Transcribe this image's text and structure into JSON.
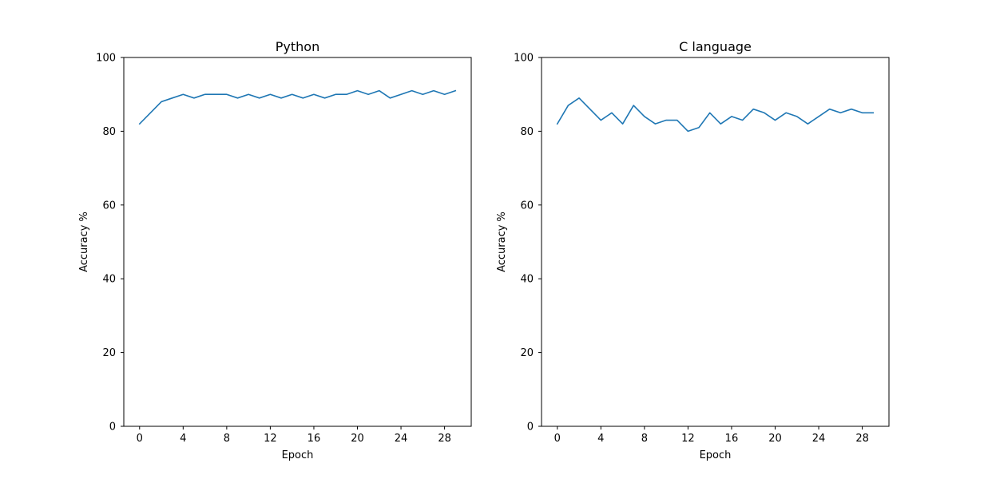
{
  "chart_data": [
    {
      "type": "line",
      "title": "Python",
      "xlabel": "Epoch",
      "ylabel": "Accuracy %",
      "xlim": [
        -1.45,
        30.45
      ],
      "ylim": [
        0,
        100
      ],
      "xticks": [
        0,
        4,
        8,
        12,
        16,
        20,
        24,
        28
      ],
      "yticks": [
        0,
        20,
        40,
        60,
        80,
        100
      ],
      "grid": false,
      "color": "#1f77b4",
      "series": [
        {
          "x": [
            0,
            1,
            2,
            3,
            4,
            5,
            6,
            7,
            8,
            9,
            10,
            11,
            12,
            13,
            14,
            15,
            16,
            17,
            18,
            19,
            20,
            21,
            22,
            23,
            24,
            25,
            26,
            27,
            28,
            29
          ],
          "values": [
            82,
            85,
            88,
            89,
            90,
            89,
            90,
            90,
            90,
            89,
            90,
            89,
            90,
            89,
            90,
            89,
            90,
            89,
            90,
            90,
            91,
            90,
            91,
            89,
            90,
            91,
            90,
            91,
            90,
            91
          ]
        }
      ]
    },
    {
      "type": "line",
      "title": "C language",
      "xlabel": "Epoch",
      "ylabel": "Accuracy %",
      "xlim": [
        -1.45,
        30.45
      ],
      "ylim": [
        0,
        100
      ],
      "xticks": [
        0,
        4,
        8,
        12,
        16,
        20,
        24,
        28
      ],
      "yticks": [
        0,
        20,
        40,
        60,
        80,
        100
      ],
      "grid": false,
      "color": "#1f77b4",
      "series": [
        {
          "x": [
            0,
            1,
            2,
            3,
            4,
            5,
            6,
            7,
            8,
            9,
            10,
            11,
            12,
            13,
            14,
            15,
            16,
            17,
            18,
            19,
            20,
            21,
            22,
            23,
            24,
            25,
            26,
            27,
            28,
            29
          ],
          "values": [
            82,
            87,
            89,
            86,
            83,
            85,
            82,
            87,
            84,
            82,
            83,
            83,
            80,
            81,
            85,
            82,
            84,
            83,
            86,
            85,
            83,
            85,
            84,
            82,
            84,
            86,
            85,
            86,
            85,
            85
          ]
        }
      ]
    }
  ]
}
